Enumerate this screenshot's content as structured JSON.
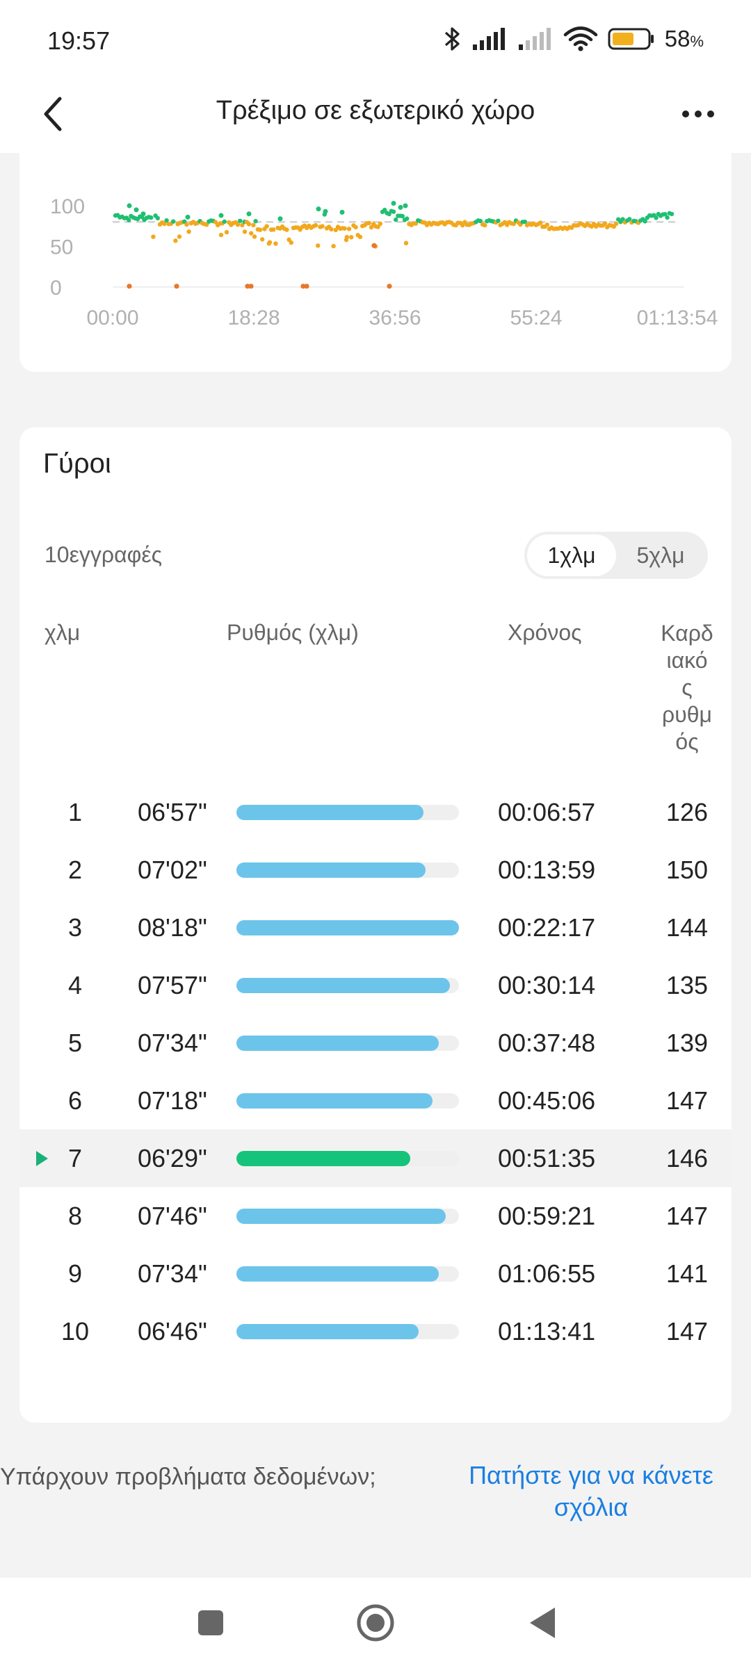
{
  "status_bar": {
    "time": "19:57",
    "battery_percent": "58",
    "battery_unit": "%",
    "icons": [
      "bluetooth-icon",
      "signal-icon",
      "signal-weak-icon",
      "wifi-icon",
      "battery-icon"
    ]
  },
  "app_bar": {
    "title": "Τρέξιμο σε εξωτερικό χώρο"
  },
  "chart_data": {
    "type": "scatter",
    "y_ticks": [
      "100",
      "50",
      "0"
    ],
    "x_ticks": [
      "00:00",
      "18:28",
      "36:56",
      "55:24",
      "01:13:54"
    ],
    "ylim": [
      0,
      100
    ],
    "reference_line": 80,
    "colors": {
      "above": "#1fbf72",
      "mid": "#f2a81d",
      "low": "#e8782a"
    }
  },
  "laps": {
    "title": "Γύροι",
    "records": "10εγγραφές",
    "toggle": {
      "option1": "1χλμ",
      "option2": "5χλμ",
      "selected": "1χλμ"
    },
    "headers": {
      "km": "χλμ",
      "pace": "Ρυθμός (χλμ)",
      "time": "Χρόνος",
      "hr": "Καρδ\nιακό\nς\nρυθμ\nός"
    },
    "colors": {
      "bar": "#6cc4ea",
      "bar_selected": "#15c47a",
      "marker": "#1ab07a"
    },
    "rows": [
      {
        "km": "1",
        "pace": "06'57\"",
        "fill_pct": 84,
        "time": "00:06:57",
        "hr": "126"
      },
      {
        "km": "2",
        "pace": "07'02\"",
        "fill_pct": 85,
        "time": "00:13:59",
        "hr": "150"
      },
      {
        "km": "3",
        "pace": "08'18\"",
        "fill_pct": 100,
        "time": "00:22:17",
        "hr": "144"
      },
      {
        "km": "4",
        "pace": "07'57\"",
        "fill_pct": 96,
        "time": "00:30:14",
        "hr": "135"
      },
      {
        "km": "5",
        "pace": "07'34\"",
        "fill_pct": 91,
        "time": "00:37:48",
        "hr": "139"
      },
      {
        "km": "6",
        "pace": "07'18\"",
        "fill_pct": 88,
        "time": "00:45:06",
        "hr": "147"
      },
      {
        "km": "7",
        "pace": "06'29\"",
        "fill_pct": 78,
        "time": "00:51:35",
        "hr": "146",
        "selected": true
      },
      {
        "km": "8",
        "pace": "07'46\"",
        "fill_pct": 94,
        "time": "00:59:21",
        "hr": "147"
      },
      {
        "km": "9",
        "pace": "07'34\"",
        "fill_pct": 91,
        "time": "01:06:55",
        "hr": "141"
      },
      {
        "km": "10",
        "pace": "06'46\"",
        "fill_pct": 82,
        "time": "01:13:41",
        "hr": "147"
      }
    ]
  },
  "feedback": {
    "question": "Υπάρχουν προβλήματα δεδομένων;",
    "link": "Πατήστε για να κάνετε σχόλια"
  },
  "nav_bar": {
    "buttons": [
      "recents-square-icon",
      "home-circle-icon",
      "back-triangle-icon"
    ]
  }
}
